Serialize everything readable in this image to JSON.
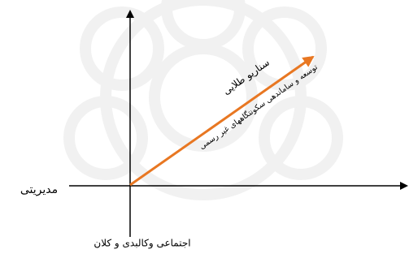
{
  "axes": {
    "horizontal": {
      "label": "مدیریتی"
    },
    "vertical": {
      "label": "اجتماعی وکالبدی و کلان"
    }
  },
  "arrow": {
    "title": "سناریو طلایی",
    "subtitle": "توسعه و ساماندهی سکونتگاههای غیر رسمی"
  }
}
